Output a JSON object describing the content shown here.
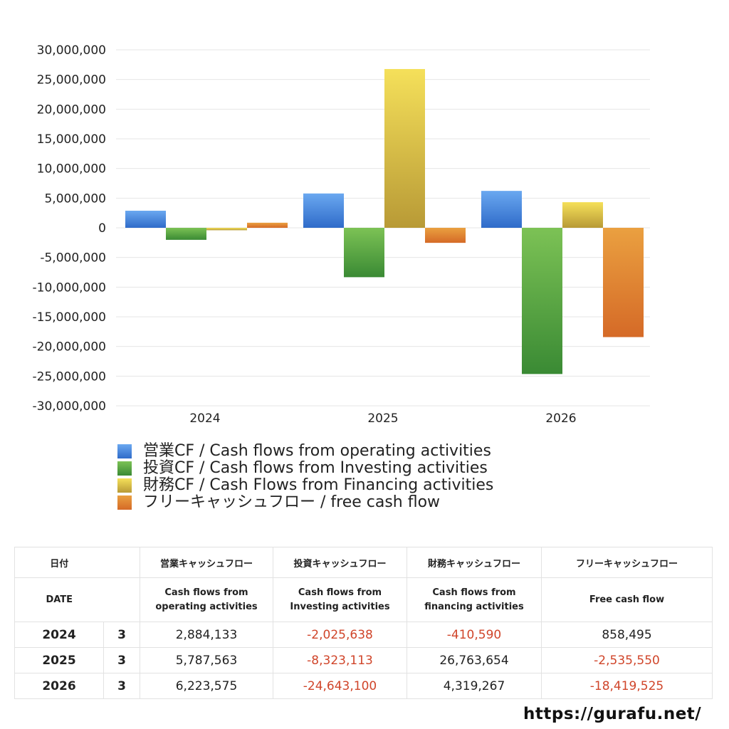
{
  "chart_data": {
    "type": "bar",
    "categories": [
      "2024",
      "2025",
      "2026"
    ],
    "series": [
      {
        "name": "営業CF / Cash flows from operating activities",
        "values": [
          2884133,
          5787563,
          6223575
        ],
        "color": "#3f7fd9"
      },
      {
        "name": "投資CF / Cash flows from Investing activities",
        "values": [
          -2025638,
          -8323113,
          -24643100
        ],
        "color": "#4f9e3f"
      },
      {
        "name": "財務CF / Cash Flows from Financing activities",
        "values": [
          -410590,
          26763654,
          4319267
        ],
        "color": "#d4b73a"
      },
      {
        "name": "フリーキャッシュフロー / free cash flow",
        "values": [
          858495,
          -2535550,
          -18419525
        ],
        "color": "#e07e2e"
      }
    ],
    "ylim": [
      -30000000,
      30000000
    ],
    "yticks": [
      "30,000,000",
      "25,000,000",
      "20,000,000",
      "15,000,000",
      "10,000,000",
      "5,000,000",
      "0",
      "-5,000,000",
      "-10,000,000",
      "-15,000,000",
      "-20,000,000",
      "-25,000,000",
      "-30,000,000"
    ],
    "grid": true,
    "legend": "bottom"
  },
  "table": {
    "header_jp": [
      "日付",
      "営業キャッシュフロー",
      "投資キャッシュフロー",
      "財務キャッシュフロー",
      "フリーキャッシュフロー"
    ],
    "header_en": [
      "DATE",
      "Cash flows from\noperating activities",
      "Cash flows from\nInvesting activities",
      "Cash flows from\nfinancing activities",
      "Free cash flow"
    ],
    "rows": [
      {
        "year": "2024",
        "month": "3",
        "op": "2,884,133",
        "inv": "-2,025,638",
        "fin": "-410,590",
        "free": "858,495"
      },
      {
        "year": "2025",
        "month": "3",
        "op": "5,787,563",
        "inv": "-8,323,113",
        "fin": "26,763,654",
        "free": "-2,535,550"
      },
      {
        "year": "2026",
        "month": "3",
        "op": "6,223,575",
        "inv": "-24,643,100",
        "fin": "4,319,267",
        "free": "-18,419,525"
      }
    ]
  },
  "footer": {
    "site": "https://gurafu.net/"
  }
}
